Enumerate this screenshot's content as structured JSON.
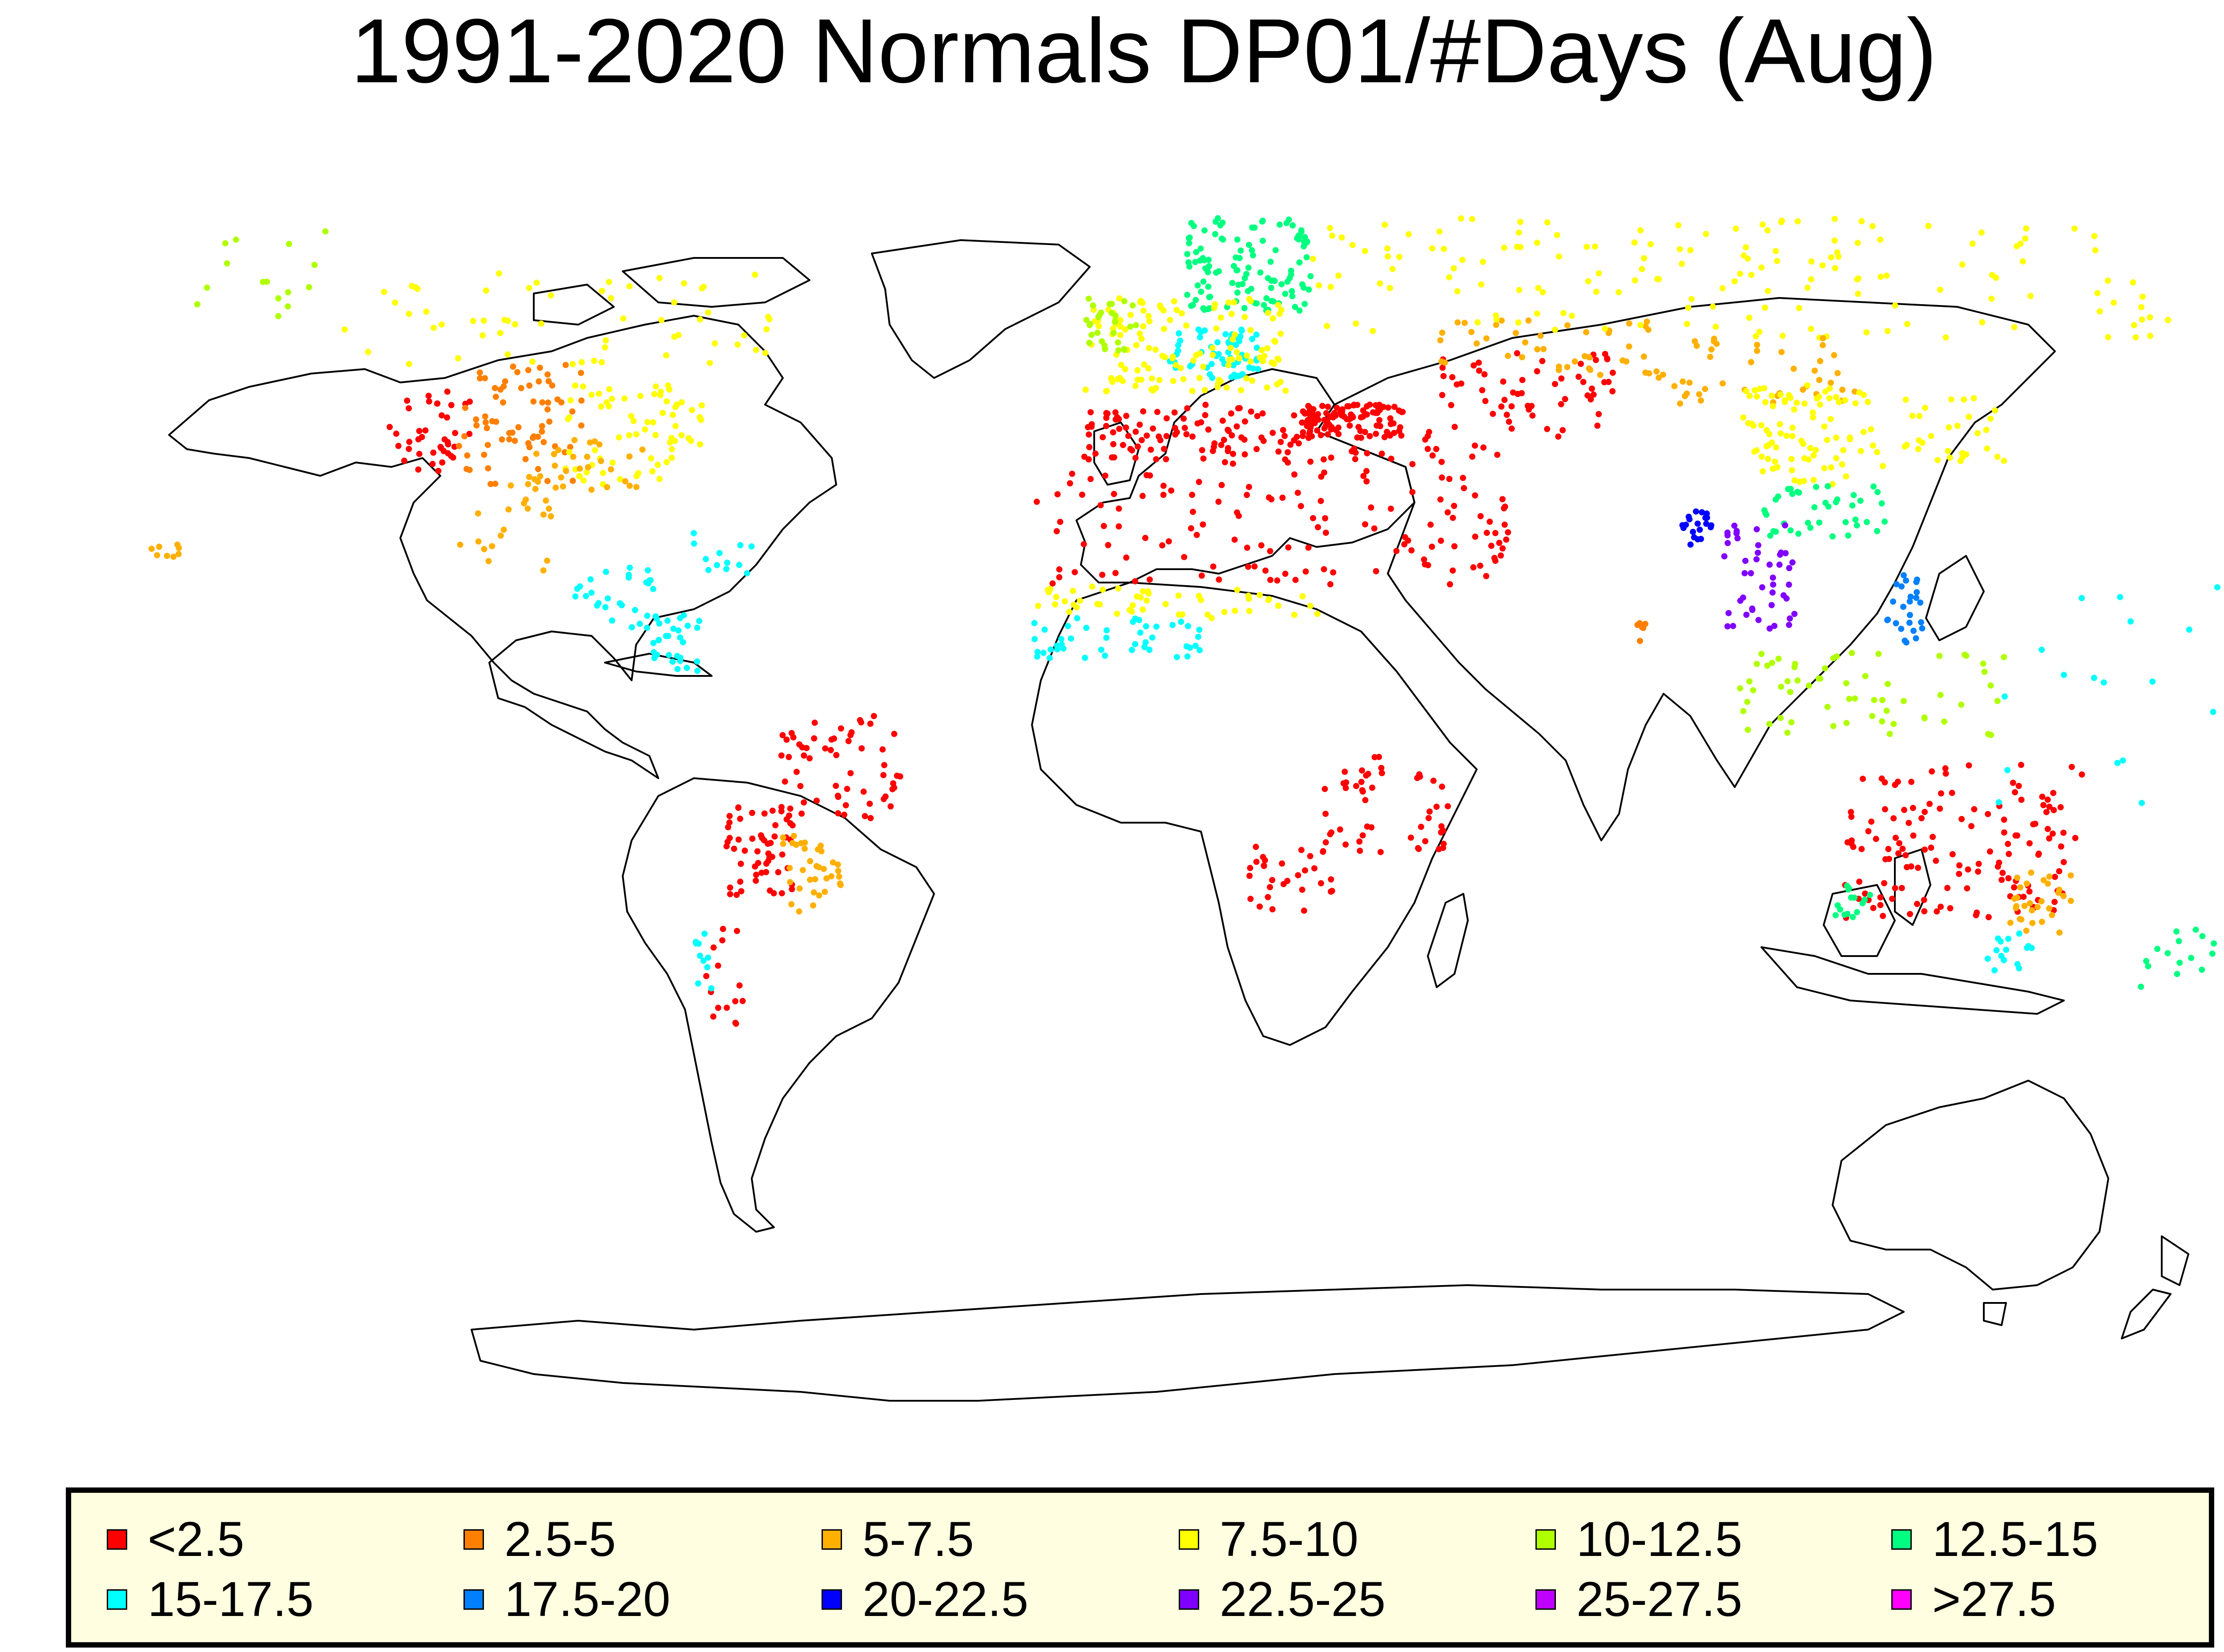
{
  "title": "1991-2020 Normals DP01/#Days (Aug)",
  "legend": [
    {
      "label": "<2.5",
      "color": "#ff0000"
    },
    {
      "label": "2.5-5",
      "color": "#ff8000"
    },
    {
      "label": "5-7.5",
      "color": "#ffb000"
    },
    {
      "label": "7.5-10",
      "color": "#ffff00"
    },
    {
      "label": "10-12.5",
      "color": "#b0ff00"
    },
    {
      "label": "12.5-15",
      "color": "#00ff80"
    },
    {
      "label": "15-17.5",
      "color": "#00ffff"
    },
    {
      "label": "17.5-20",
      "color": "#0080ff"
    },
    {
      "label": "20-22.5",
      "color": "#0000ff"
    },
    {
      "label": "22.5-25",
      "color": "#8000ff"
    },
    {
      "label": "25-27.5",
      "color": "#c000ff"
    },
    {
      "label": ">27.5",
      "color": "#ff00ff"
    }
  ],
  "map": {
    "projection": "world (Robinson-like)",
    "frame": "none",
    "outline_color": "#000000",
    "regions": [
      {
        "name": "western United States",
        "class": "<2.5",
        "lon": [
          -124,
          -110
        ],
        "lat": [
          32,
          44
        ],
        "n": 40
      },
      {
        "name": "central United States",
        "class": "2.5-5",
        "lon": [
          -112,
          -92
        ],
        "lat": [
          30,
          48
        ],
        "n": 70
      },
      {
        "name": "eastern United States",
        "class": "7.5-10",
        "lon": [
          -95,
          -72
        ],
        "lat": [
          30,
          45
        ],
        "n": 70
      },
      {
        "name": "southeastern United States",
        "class": "5-7.5",
        "lon": [
          -100,
          -80
        ],
        "lat": [
          29,
          37
        ],
        "n": 30
      },
      {
        "name": "Canada",
        "class": "7.5-10",
        "lon": [
          -135,
          -60
        ],
        "lat": [
          48,
          62
        ],
        "n": 60
      },
      {
        "name": "Alaska",
        "class": "10-12.5",
        "lon": [
          -165,
          -140
        ],
        "lat": [
          55,
          68
        ],
        "n": 15
      },
      {
        "name": "Mexico",
        "class": "5-7.5",
        "lon": [
          -110,
          -95
        ],
        "lat": [
          17,
          30
        ],
        "n": 20
      },
      {
        "name": "Central America",
        "class": "15-17.5",
        "lon": [
          -92,
          -78
        ],
        "lat": [
          8,
          18
        ],
        "n": 25
      },
      {
        "name": "Caribbean",
        "class": "15-17.5",
        "lon": [
          -84,
          -62
        ],
        "lat": [
          15,
          23
        ],
        "n": 15
      },
      {
        "name": "Colombia",
        "class": "15-17.5",
        "lon": [
          -78,
          -70
        ],
        "lat": [
          2,
          11
        ],
        "n": 30
      },
      {
        "name": "northeastern Brazil",
        "class": "<2.5",
        "lon": [
          -58,
          -38
        ],
        "lat": [
          -20,
          -4
        ],
        "n": 60
      },
      {
        "name": "Paraguay and northern Argentina",
        "class": "<2.5",
        "lon": [
          -67,
          -56
        ],
        "lat": [
          -32,
          -18
        ],
        "n": 55
      },
      {
        "name": "southern Brazil and Uruguay",
        "class": "5-7.5",
        "lon": [
          -58,
          -48
        ],
        "lat": [
          -34,
          -22
        ],
        "n": 35
      },
      {
        "name": "Patagonia",
        "class": "<2.5",
        "lon": [
          -72,
          -66
        ],
        "lat": [
          -52,
          -36
        ],
        "n": 15
      },
      {
        "name": "southern Chile",
        "class": "15-17.5",
        "lon": [
          -74,
          -71
        ],
        "lat": [
          -46,
          -36
        ],
        "n": 10
      },
      {
        "name": "Scandinavia",
        "class": "12.5-15",
        "lon": [
          8,
          30
        ],
        "lat": [
          56,
          70
        ],
        "n": 120
      },
      {
        "name": "central Europe",
        "class": "15-17.5",
        "lon": [
          5,
          20
        ],
        "lat": [
          46,
          54
        ],
        "n": 60
      },
      {
        "name": "western Europe",
        "class": "7.5-10",
        "lon": [
          -9,
          25
        ],
        "lat": [
          44,
          58
        ],
        "n": 130
      },
      {
        "name": "British Isles",
        "class": "10-12.5",
        "lon": [
          -9,
          0
        ],
        "lat": [
          50,
          58
        ],
        "n": 30
      },
      {
        "name": "Mediterranean",
        "class": "<2.5",
        "lon": [
          -9,
          36
        ],
        "lat": [
          33,
          42
        ],
        "n": 130
      },
      {
        "name": "Turkey",
        "class": "<2.5",
        "lon": [
          27,
          44
        ],
        "lat": [
          37,
          42
        ],
        "n": 90
      },
      {
        "name": "North Africa",
        "class": "<2.5",
        "lon": [
          -17,
          32
        ],
        "lat": [
          15,
          32
        ],
        "n": 80
      },
      {
        "name": "Middle East",
        "class": "<2.5",
        "lon": [
          35,
          60
        ],
        "lat": [
          15,
          38
        ],
        "n": 70
      },
      {
        "name": "Central Asia",
        "class": "<2.5",
        "lon": [
          50,
          80
        ],
        "lat": [
          37,
          50
        ],
        "n": 60
      },
      {
        "name": "Kazakhstan steppe",
        "class": "5-7.5",
        "lon": [
          50,
          88
        ],
        "lat": [
          46,
          55
        ],
        "n": 45
      },
      {
        "name": "Russia",
        "class": "7.5-10",
        "lon": [
          30,
          175
        ],
        "lat": [
          52,
          70
        ],
        "n": 160
      },
      {
        "name": "Mongolia",
        "class": "5-7.5",
        "lon": [
          88,
          120
        ],
        "lat": [
          42,
          52
        ],
        "n": 40
      },
      {
        "name": "northern China",
        "class": "7.5-10",
        "lon": [
          100,
          122
        ],
        "lat": [
          30,
          45
        ],
        "n": 90
      },
      {
        "name": "southern China",
        "class": "12.5-15",
        "lon": [
          100,
          122
        ],
        "lat": [
          22,
          30
        ],
        "n": 40
      },
      {
        "name": "Japan and Korea",
        "class": "7.5-10",
        "lon": [
          126,
          142
        ],
        "lat": [
          33,
          43
        ],
        "n": 30
      },
      {
        "name": "Bangladesh",
        "class": "20-22.5",
        "lon": [
          88,
          93
        ],
        "lat": [
          21,
          26
        ],
        "n": 20
      },
      {
        "name": "Myanmar and Thailand",
        "class": "22.5-25",
        "lon": [
          94,
          106
        ],
        "lat": [
          8,
          24
        ],
        "n": 45
      },
      {
        "name": "Philippines",
        "class": "17.5-20",
        "lon": [
          120,
          126
        ],
        "lat": [
          6,
          18
        ],
        "n": 25
      },
      {
        "name": "Indonesia",
        "class": "10-12.5",
        "lon": [
          96,
          140
        ],
        "lat": [
          -8,
          5
        ],
        "n": 60
      },
      {
        "name": "Sahel",
        "class": "7.5-10",
        "lon": [
          -17,
          30
        ],
        "lat": [
          10,
          15
        ],
        "n": 50
      },
      {
        "name": "West African coast",
        "class": "15-17.5",
        "lon": [
          -17,
          10
        ],
        "lat": [
          4,
          10
        ],
        "n": 45
      },
      {
        "name": "Mozambique and Malawi",
        "class": "<2.5",
        "lon": [
          30,
          40
        ],
        "lat": [
          -26,
          -10
        ],
        "n": 30
      },
      {
        "name": "southern Africa",
        "class": "<2.5",
        "lon": [
          18,
          32
        ],
        "lat": [
          -34,
          -24
        ],
        "n": 30
      },
      {
        "name": "Madagascar",
        "class": "<2.5",
        "lon": [
          44,
          50
        ],
        "lat": [
          -25,
          -13
        ],
        "n": 20
      },
      {
        "name": "Australia interior",
        "class": "<2.5",
        "lon": [
          115,
          152
        ],
        "lat": [
          -35,
          -12
        ],
        "n": 140
      },
      {
        "name": "southeastern Australia",
        "class": "5-7.5",
        "lon": [
          143,
          153
        ],
        "lat": [
          -38,
          -28
        ],
        "n": 30
      },
      {
        "name": "southwestern Australia",
        "class": "12.5-15",
        "lon": [
          114,
          120
        ],
        "lat": [
          -35,
          -30
        ],
        "n": 15
      },
      {
        "name": "Victoria and Tasmania",
        "class": "15-17.5",
        "lon": [
          140,
          148
        ],
        "lat": [
          -43,
          -37
        ],
        "n": 15
      },
      {
        "name": "New Zealand",
        "class": "12.5-15",
        "lon": [
          167,
          178
        ],
        "lat": [
          -46,
          -36
        ],
        "n": 15
      },
      {
        "name": "Sri Lanka",
        "class": "2.5-5",
        "lon": [
          79.7,
          81.8
        ],
        "lat": [
          6,
          9.8
        ],
        "n": 6
      },
      {
        "name": "Pacific islands",
        "class": "15-17.5",
        "lon": [
          135,
          180
        ],
        "lat": [
          -20,
          15
        ],
        "n": 20
      },
      {
        "name": "Hawaii",
        "class": "5-7.5",
        "lon": [
          -160,
          -155
        ],
        "lat": [
          19,
          22
        ],
        "n": 8
      }
    ]
  }
}
